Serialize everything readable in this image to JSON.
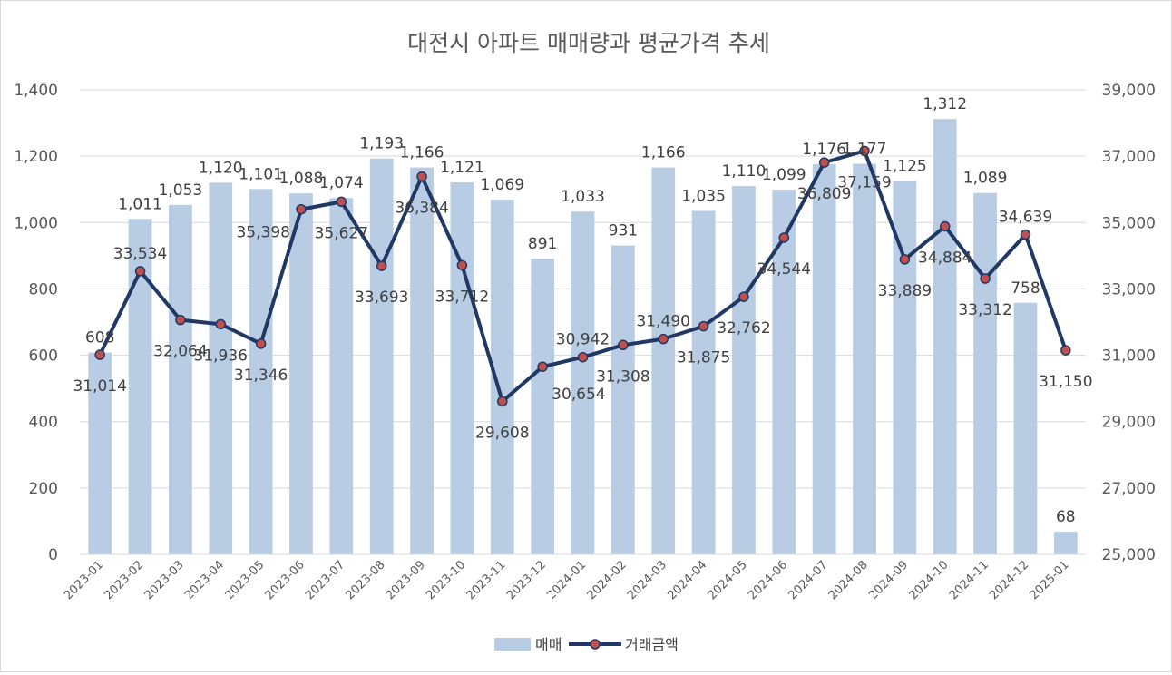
{
  "chart_data": {
    "type": "bar",
    "title": "대전시 아파트 매매량과 평균가격 추세",
    "categories": [
      "2023-01",
      "2023-02",
      "2023-03",
      "2023-04",
      "2023-05",
      "2023-06",
      "2023-07",
      "2023-08",
      "2023-09",
      "2023-10",
      "2023-11",
      "2023-12",
      "2024-01",
      "2024-02",
      "2024-03",
      "2024-04",
      "2024-05",
      "2024-06",
      "2024-07",
      "2024-08",
      "2024-09",
      "2024-10",
      "2024-11",
      "2024-12",
      "2025-01"
    ],
    "series": [
      {
        "name": "매매",
        "type": "bar",
        "axis": "left",
        "color": "#b8cce4",
        "values": [
          608,
          1011,
          1053,
          1120,
          1101,
          1088,
          1074,
          1193,
          1166,
          1121,
          1069,
          891,
          1033,
          931,
          1166,
          1035,
          1110,
          1099,
          1176,
          1177,
          1125,
          1312,
          1089,
          758,
          68
        ],
        "labels": [
          "608",
          "1,011",
          "1,053",
          "1,120",
          "1,101",
          "1,088",
          "1,074",
          "1,193",
          "1,166",
          "1,121",
          "1,069",
          "891",
          "1,033",
          "931",
          "1,166",
          "1,035",
          "1,110",
          "1,099",
          "1,176",
          "1,177",
          "1,125",
          "1,312",
          "1,089",
          "758",
          "68"
        ]
      },
      {
        "name": "거래금액",
        "type": "line",
        "axis": "right",
        "color": "#1f3864",
        "marker_color": "#c0504d",
        "values": [
          31014,
          33534,
          32064,
          31936,
          31346,
          35398,
          35627,
          33693,
          36384,
          33712,
          29608,
          30654,
          30942,
          31308,
          31490,
          31875,
          32762,
          34544,
          36809,
          37159,
          33889,
          34884,
          33312,
          34639,
          31150
        ],
        "labels": [
          "31,014",
          "33,534",
          "32,064",
          "31,936",
          "31,346",
          "35,398",
          "35,627",
          "33,693",
          "36,384",
          "33,712",
          "29,608",
          "30,654",
          "30,942",
          "31,308",
          "31,490",
          "31,875",
          "32,762",
          "34,544",
          "36,809",
          "37,159",
          "33,889",
          "34,884",
          "33,312",
          "34,639",
          "31,150"
        ]
      }
    ],
    "y_left": {
      "min": 0,
      "max": 1400,
      "ticks": [
        "0",
        "200",
        "400",
        "600",
        "800",
        "1,000",
        "1,200",
        "1,400"
      ]
    },
    "y_right": {
      "min": 25000,
      "max": 39000,
      "ticks": [
        "25,000",
        "27,000",
        "29,000",
        "31,000",
        "33,000",
        "35,000",
        "37,000",
        "39,000"
      ]
    },
    "grid": true,
    "legend_position": "bottom"
  }
}
